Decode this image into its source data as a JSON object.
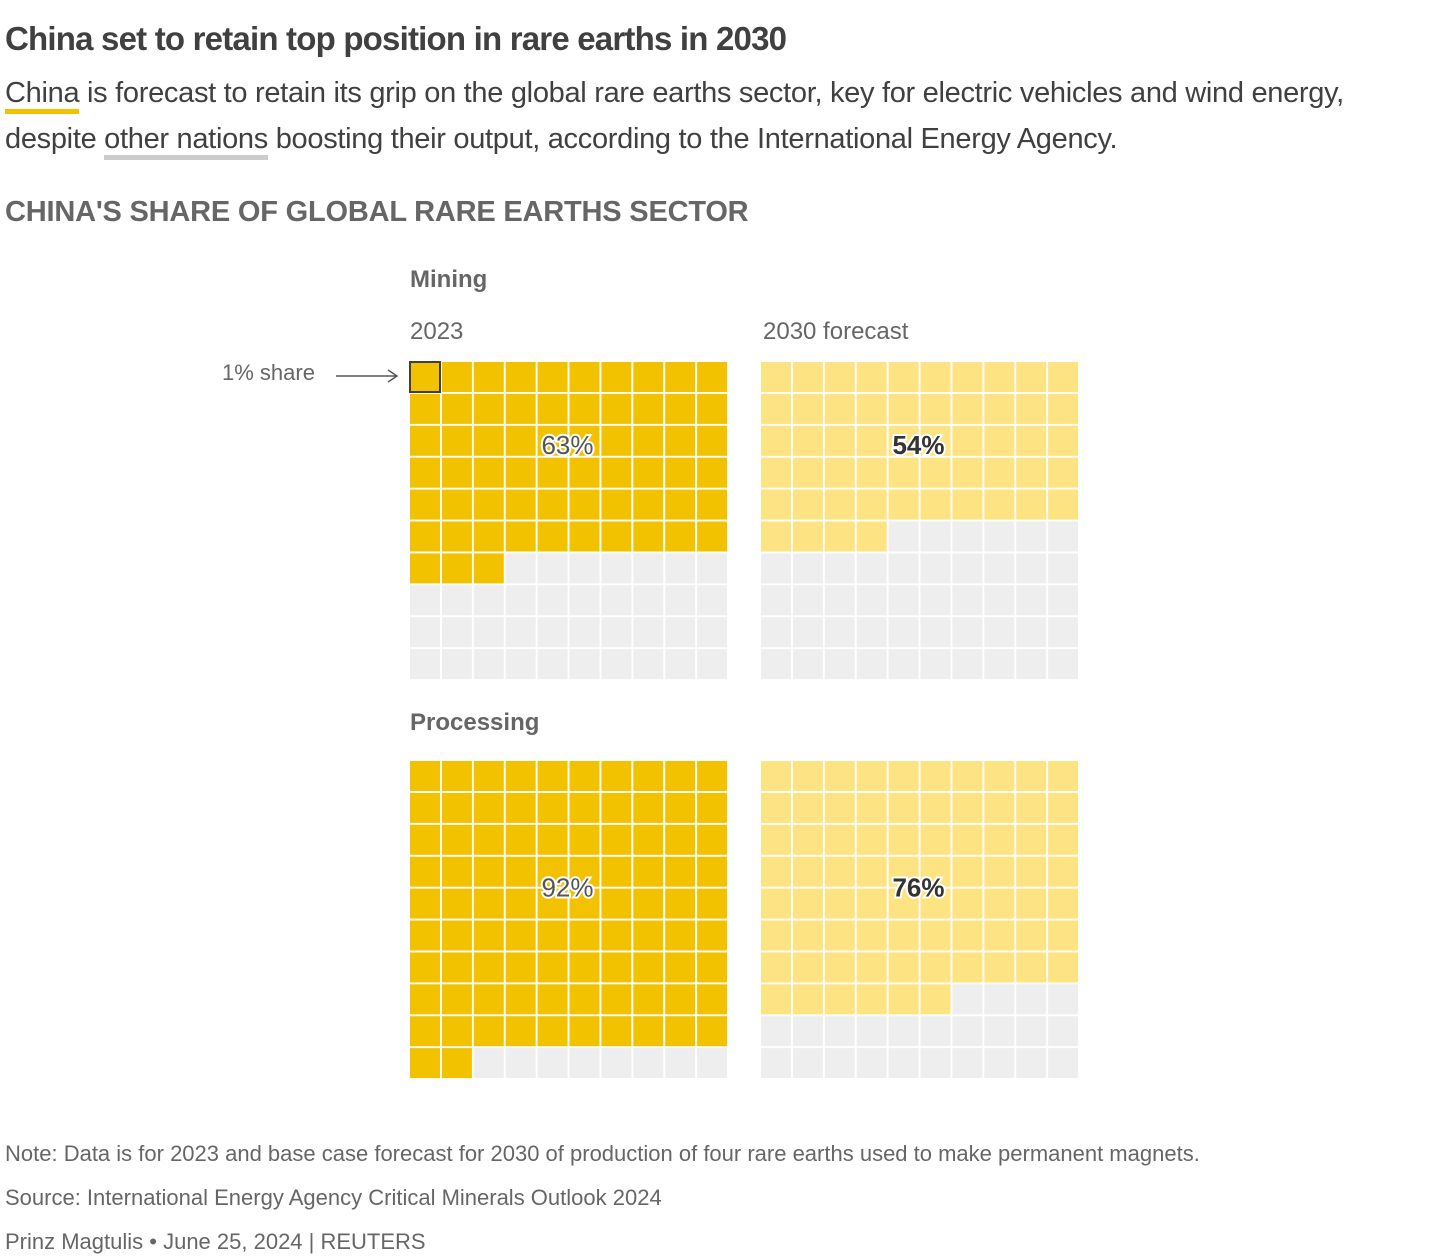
{
  "title": "China set to retain top position in rare earths in 2030",
  "subtitle": {
    "highlight1": "China",
    "part1": " is forecast to retain its grip on the global rare earths sector, key for electric vehicles and wind energy, despite ",
    "highlight2": "other nations",
    "part2": " boosting their output, according to the International Energy Agency."
  },
  "colors": {
    "china_2023": "#f2c200",
    "china_2030": "#fee382",
    "other": "#eeeeee",
    "highlight_china": "#f2c200",
    "highlight_other": "#cccccc"
  },
  "annotation": "1% share",
  "footer": {
    "note": "Note: Data is for 2023 and base case forecast for 2030 of production of four rare earths used to make permanent magnets.",
    "source": "Source: International Energy Agency Critical Minerals Outlook 2024",
    "credit": "Prinz Magtulis • June 25, 2024 | REUTERS"
  },
  "chart_data": {
    "type": "waffle",
    "title": "CHINA'S SHARE OF GLOBAL RARE EARTHS SECTOR",
    "columns": [
      "2023",
      "2030 forecast"
    ],
    "grid": "10x10, 1 cell = 1% share",
    "groups": [
      {
        "name": "Mining",
        "values": [
          {
            "label": "2023",
            "value": 63,
            "display": "63%"
          },
          {
            "label": "2030 forecast",
            "value": 54,
            "display": "54%"
          }
        ]
      },
      {
        "name": "Processing",
        "values": [
          {
            "label": "2023",
            "value": 92,
            "display": "92%"
          },
          {
            "label": "2030 forecast",
            "value": 76,
            "display": "76%"
          }
        ]
      }
    ]
  }
}
